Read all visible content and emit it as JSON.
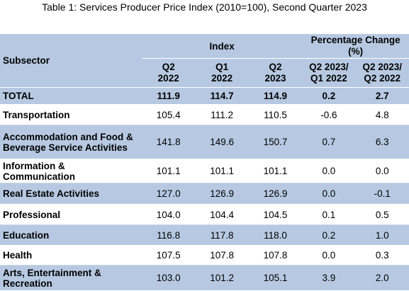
{
  "caption": "Table 1: Services Producer Price Index (2010=100), Second Quarter 2023",
  "header": {
    "subsector": "Subsector",
    "index": "Index",
    "pct_change": "Percentage Change (%)",
    "cols": [
      {
        "l1": "Q2",
        "l2": "2022"
      },
      {
        "l1": "Q1",
        "l2": "2022"
      },
      {
        "l1": "Q2",
        "l2": "2023"
      },
      {
        "l1": "Q2 2023/",
        "l2": "Q1 2022"
      },
      {
        "l1": "Q2 2023/",
        "l2": "Q2 2022"
      }
    ]
  },
  "rows": [
    {
      "name": "TOTAL",
      "values": [
        "111.9",
        "114.7",
        "114.9",
        "0.2",
        "2.7"
      ]
    },
    {
      "name": "Transportation",
      "values": [
        "105.4",
        "111.2",
        "110.5",
        "-0.6",
        "4.8"
      ]
    },
    {
      "name": "Accommodation and Food & Beverage Service Activities",
      "values": [
        "141.8",
        "149.6",
        "150.7",
        "0.7",
        "6.3"
      ]
    },
    {
      "name": "Information & Communication",
      "values": [
        "101.1",
        "101.1",
        "101.1",
        "0.0",
        "0.0"
      ]
    },
    {
      "name": "Real Estate Activities",
      "values": [
        "127.0",
        "126.9",
        "126.9",
        "0.0",
        "-0.1"
      ]
    },
    {
      "name": "Professional",
      "values": [
        "104.0",
        "104.4",
        "104.5",
        "0.1",
        "0.5"
      ]
    },
    {
      "name": "Education",
      "values": [
        "116.8",
        "117.8",
        "118.0",
        "0.2",
        "1.0"
      ]
    },
    {
      "name": "Health",
      "values": [
        "107.5",
        "107.8",
        "107.8",
        "0.0",
        "0.3"
      ]
    },
    {
      "name": "Arts, Entertainment & Recreation",
      "values": [
        "103.0",
        "101.2",
        "105.1",
        "3.9",
        "2.0"
      ]
    }
  ]
}
